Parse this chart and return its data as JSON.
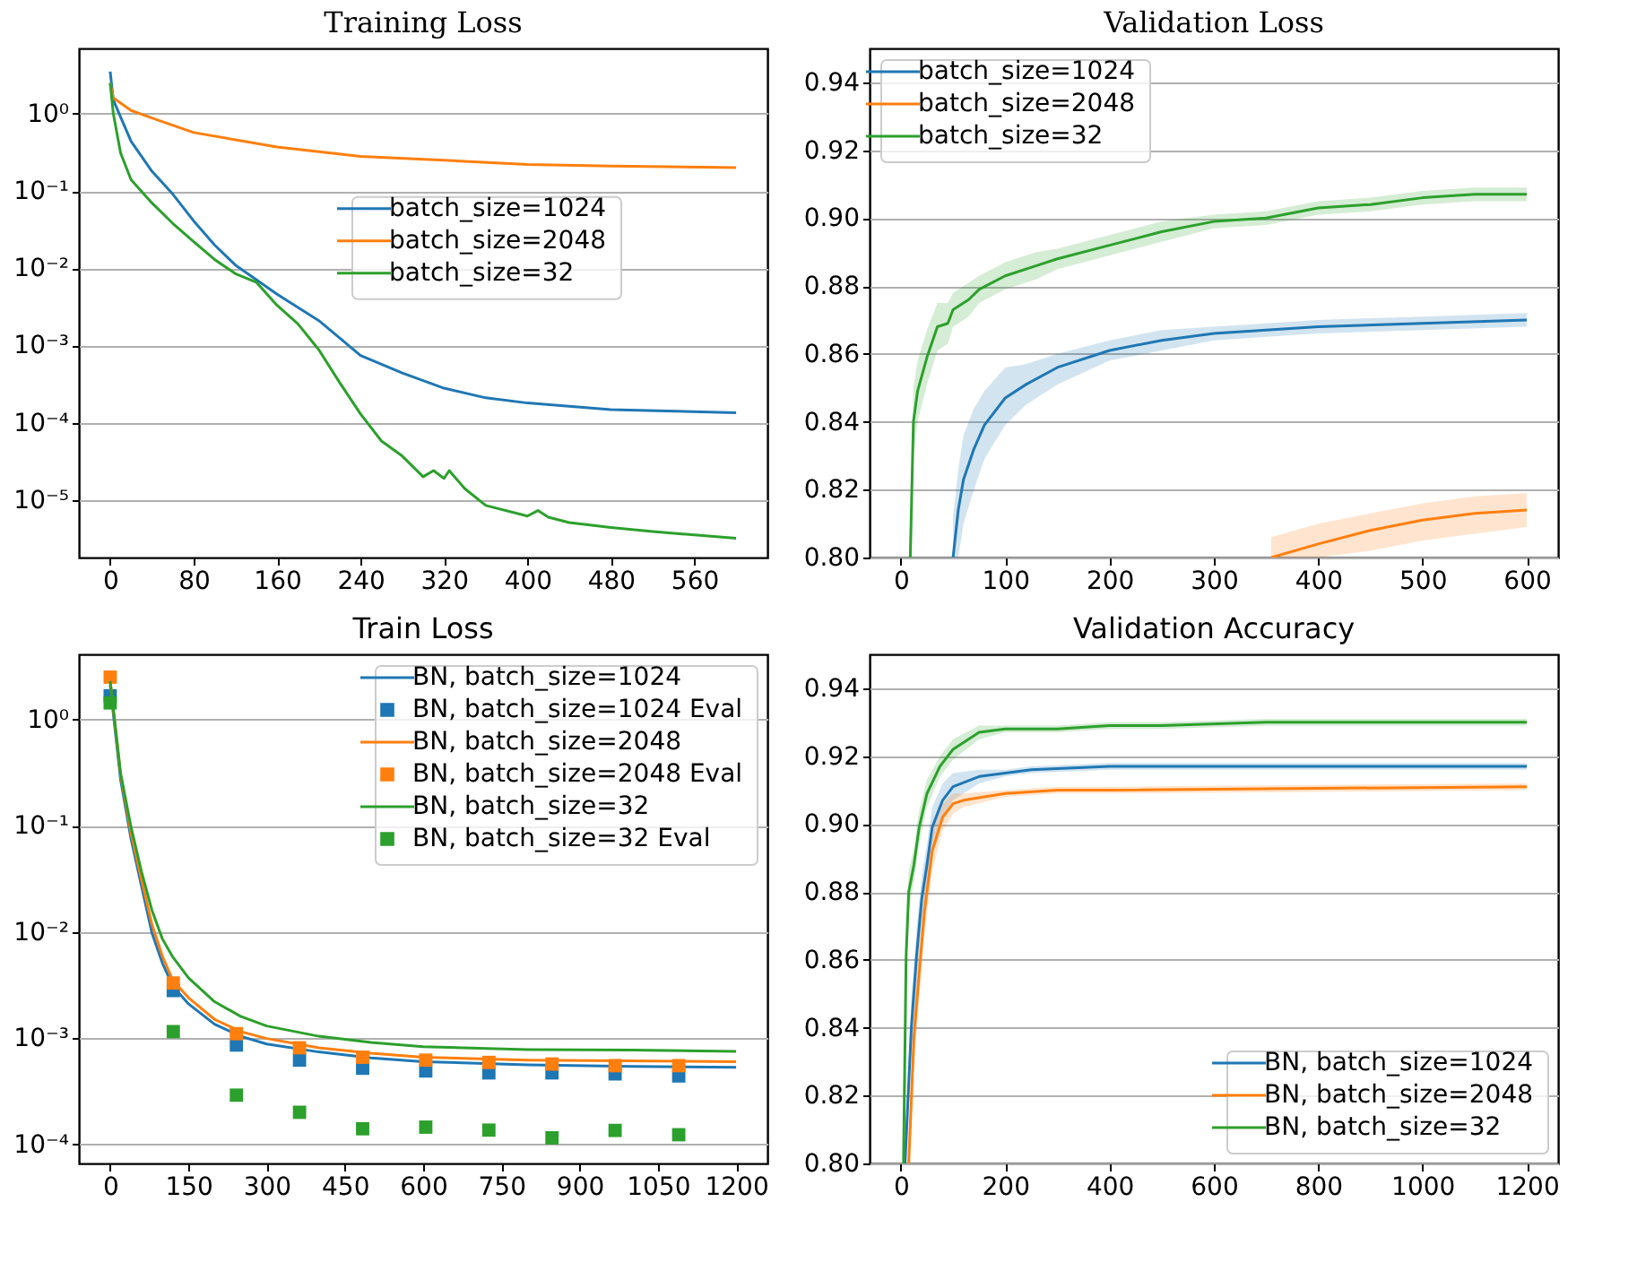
{
  "chart_data": [
    {
      "type": "line",
      "title": "Training Loss",
      "log": "y",
      "grid": "y",
      "legend": "right",
      "xlim": [
        -30,
        630
      ],
      "xticks": [
        0,
        80,
        160,
        240,
        320,
        400,
        480,
        560
      ],
      "ylim": [
        1.8e-06,
        7
      ],
      "yticks": [
        {
          "value": 1,
          "label": "10⁰"
        },
        {
          "value": 0.1,
          "label": "10⁻¹"
        },
        {
          "value": 0.01,
          "label": "10⁻²"
        },
        {
          "value": 0.001,
          "label": "10⁻³"
        },
        {
          "value": 0.0001,
          "label": "10⁻⁴"
        },
        {
          "value": 1e-05,
          "label": "10⁻⁵"
        }
      ],
      "series": [
        {
          "name": "batch_size=1024",
          "color": "#1f77b4",
          "x": [
            0,
            3,
            20,
            40,
            60,
            80,
            100,
            120,
            160,
            200,
            240,
            280,
            320,
            360,
            400,
            480,
            600
          ],
          "values": [
            3.5,
            1.5,
            0.44,
            0.18,
            0.091,
            0.041,
            0.02,
            0.011,
            0.0046,
            0.0021,
            0.00074,
            0.00044,
            0.00028,
            0.00021,
            0.00018,
            0.000148,
            0.000135
          ]
        },
        {
          "name": "batch_size=2048",
          "color": "#ff7f0e",
          "x": [
            0,
            3,
            20,
            40,
            80,
            160,
            240,
            320,
            400,
            480,
            600
          ],
          "values": [
            2.5,
            1.6,
            1.1,
            0.88,
            0.57,
            0.37,
            0.28,
            0.25,
            0.22,
            0.21,
            0.2
          ]
        },
        {
          "name": "batch_size=32",
          "color": "#2ca02c",
          "x": [
            0,
            3,
            10,
            20,
            40,
            60,
            80,
            100,
            120,
            140,
            160,
            180,
            200,
            220,
            240,
            260,
            280,
            300,
            310,
            320,
            325,
            340,
            360,
            400,
            410,
            420,
            440,
            480,
            520,
            600
          ],
          "values": [
            2.5,
            1.0,
            0.31,
            0.14,
            0.07,
            0.038,
            0.022,
            0.013,
            0.0085,
            0.0066,
            0.0033,
            0.0019,
            0.00088,
            0.00033,
            0.00013,
            5.8e-05,
            3.7e-05,
            2e-05,
            2.4e-05,
            1.9e-05,
            2.4e-05,
            1.4e-05,
            8.5e-06,
            6.2e-06,
            7.3e-06,
            6e-06,
            5.1e-06,
            4.4e-06,
            3.9e-06,
            3.2e-06
          ]
        }
      ]
    },
    {
      "type": "line",
      "title": "Validation Loss",
      "grid": "y",
      "legend": "top left",
      "xlim": [
        -30,
        630
      ],
      "xticks": [
        0,
        100,
        200,
        300,
        400,
        500,
        600
      ],
      "ylim": [
        0.8,
        0.95
      ],
      "yticks": [
        {
          "value": 0.8,
          "label": "0.80"
        },
        0.82,
        0.84,
        0.86,
        0.88,
        {
          "value": 0.9,
          "label": "0.90"
        },
        0.92,
        0.94
      ],
      "series": [
        {
          "name": "batch_size=1024",
          "color": "#1f77b4",
          "x": [
            50,
            55,
            60,
            70,
            80,
            100,
            120,
            150,
            200,
            250,
            300,
            350,
            400,
            500,
            600
          ],
          "values": [
            0.8,
            0.814,
            0.823,
            0.832,
            0.839,
            0.847,
            0.851,
            0.856,
            0.861,
            0.864,
            0.866,
            0.867,
            0.868,
            0.869,
            0.87
          ],
          "lower": [
            0.8,
            0.8,
            0.81,
            0.82,
            0.829,
            0.839,
            0.845,
            0.851,
            0.858,
            0.861,
            0.864,
            0.865,
            0.866,
            0.867,
            0.868
          ],
          "upper": [
            0.812,
            0.826,
            0.836,
            0.844,
            0.849,
            0.856,
            0.857,
            0.86,
            0.864,
            0.867,
            0.868,
            0.869,
            0.87,
            0.871,
            0.872
          ]
        },
        {
          "name": "batch_size=2048",
          "color": "#ff7f0e",
          "x": [
            355,
            400,
            450,
            500,
            550,
            600
          ],
          "values": [
            0.8,
            0.804,
            0.808,
            0.811,
            0.813,
            0.814
          ],
          "lower": [
            0.8,
            0.8,
            0.802,
            0.805,
            0.807,
            0.809
          ],
          "upper": [
            0.806,
            0.81,
            0.813,
            0.816,
            0.818,
            0.819
          ]
        },
        {
          "name": "batch_size=32",
          "color": "#2ca02c",
          "x": [
            9,
            12,
            16,
            25,
            35,
            45,
            50,
            65,
            75,
            100,
            130,
            150,
            200,
            250,
            300,
            350,
            400,
            450,
            500,
            550,
            600
          ],
          "values": [
            0.8,
            0.84,
            0.849,
            0.859,
            0.868,
            0.869,
            0.873,
            0.876,
            0.879,
            0.883,
            0.886,
            0.888,
            0.892,
            0.896,
            0.899,
            0.9,
            0.903,
            0.904,
            0.906,
            0.907,
            0.907
          ],
          "lower": [
            0.8,
            0.83,
            0.84,
            0.851,
            0.861,
            0.863,
            0.868,
            0.871,
            0.875,
            0.879,
            0.882,
            0.885,
            0.889,
            0.893,
            0.897,
            0.898,
            0.901,
            0.902,
            0.904,
            0.905,
            0.905
          ],
          "upper": [
            0.81,
            0.85,
            0.858,
            0.867,
            0.875,
            0.875,
            0.878,
            0.881,
            0.883,
            0.887,
            0.89,
            0.891,
            0.895,
            0.899,
            0.901,
            0.902,
            0.905,
            0.906,
            0.908,
            0.909,
            0.909
          ]
        }
      ]
    },
    {
      "type": "line",
      "title": "Train Loss",
      "log": "y",
      "grid": "y",
      "legend": "top right",
      "xlim": [
        -60,
        1260
      ],
      "xticks": [
        0,
        150,
        300,
        450,
        600,
        750,
        900,
        1050,
        1200
      ],
      "ylim": [
        6.6e-05,
        4.1
      ],
      "yticks": [
        {
          "value": 1,
          "label": "10⁰"
        },
        {
          "value": 0.1,
          "label": "10⁻¹"
        },
        {
          "value": 0.01,
          "label": "10⁻²"
        },
        {
          "value": 0.001,
          "label": "10⁻³"
        },
        {
          "value": 0.0001,
          "label": "10⁻⁴"
        }
      ],
      "series": [
        {
          "name": "BN, batch_size=1024",
          "color": "#1f77b4",
          "x": [
            0,
            20,
            40,
            60,
            80,
            100,
            120,
            150,
            200,
            250,
            300,
            400,
            500,
            600,
            800,
            1000,
            1200
          ],
          "values": [
            2.1,
            0.27,
            0.075,
            0.027,
            0.0098,
            0.0051,
            0.0031,
            0.0021,
            0.00135,
            0.00104,
            0.00088,
            0.00074,
            0.00065,
            0.0006,
            0.00056,
            0.00054,
            0.00053
          ]
        },
        {
          "name": "BN, batch_size=1024 Eval",
          "type": "scatter",
          "marker": "square",
          "color": "#1f77b4",
          "x": [
            0,
            121,
            242,
            363,
            484,
            605,
            726,
            847,
            968,
            1090
          ],
          "values": [
            1.67,
            0.0028,
            0.00086,
            0.00062,
            0.00052,
            0.00049,
            0.00047,
            0.00047,
            0.00046,
            0.00044
          ]
        },
        {
          "name": "BN, batch_size=2048",
          "color": "#ff7f0e",
          "x": [
            0,
            20,
            40,
            60,
            80,
            100,
            120,
            150,
            200,
            250,
            300,
            400,
            500,
            600,
            800,
            1200
          ],
          "values": [
            2.3,
            0.3,
            0.085,
            0.031,
            0.0118,
            0.0059,
            0.0035,
            0.0024,
            0.0015,
            0.00115,
            0.00099,
            0.00081,
            0.00072,
            0.00066,
            0.00062,
            0.0006
          ]
        },
        {
          "name": "BN, batch_size=2048 Eval",
          "type": "scatter",
          "marker": "square",
          "color": "#ff7f0e",
          "x": [
            0,
            121,
            242,
            363,
            484,
            605,
            726,
            847,
            968,
            1090
          ],
          "values": [
            2.5,
            0.0033,
            0.0011,
            0.00081,
            0.00066,
            0.00062,
            0.00059,
            0.00057,
            0.00055,
            0.00055
          ]
        },
        {
          "name": "BN, batch_size=32",
          "color": "#2ca02c",
          "x": [
            0,
            20,
            40,
            60,
            80,
            100,
            120,
            150,
            200,
            250,
            300,
            400,
            500,
            600,
            800,
            1000,
            1200
          ],
          "values": [
            2.3,
            0.31,
            0.097,
            0.037,
            0.016,
            0.0086,
            0.0058,
            0.0037,
            0.0022,
            0.0016,
            0.0013,
            0.00104,
            0.00091,
            0.00083,
            0.00078,
            0.00077,
            0.00075
          ]
        },
        {
          "name": "BN, batch_size=32 Eval",
          "type": "scatter",
          "marker": "square",
          "color": "#2ca02c",
          "x": [
            0,
            121,
            242,
            363,
            484,
            605,
            726,
            847,
            968,
            1090
          ],
          "values": [
            1.43,
            0.00115,
            0.00029,
            0.0002,
            0.00014,
            0.000145,
            0.000136,
            0.000115,
            0.000135,
            0.000123
          ]
        }
      ]
    },
    {
      "type": "line",
      "title": "Validation Accuracy",
      "grid": "y",
      "legend": "bottom right",
      "xlim": [
        -60,
        1260
      ],
      "xticks": [
        0,
        200,
        400,
        600,
        800,
        1000,
        1200
      ],
      "ylim": [
        0.8,
        0.95
      ],
      "yticks": [
        {
          "value": 0.8,
          "label": "0.80"
        },
        0.82,
        0.84,
        0.86,
        0.88,
        {
          "value": 0.9,
          "label": "0.90"
        },
        0.92,
        0.94
      ],
      "series": [
        {
          "name": "BN, batch_size=1024",
          "color": "#1f77b4",
          "x": [
            8,
            20,
            30,
            40,
            50,
            60,
            80,
            100,
            150,
            200,
            250,
            400,
            600,
            1200
          ],
          "values": [
            0.8,
            0.84,
            0.861,
            0.878,
            0.888,
            0.899,
            0.907,
            0.911,
            0.914,
            0.915,
            0.916,
            0.917,
            0.917,
            0.917
          ],
          "lower": [
            0.8,
            0.832,
            0.853,
            0.871,
            0.882,
            0.893,
            0.902,
            0.907,
            0.912,
            0.914,
            0.915,
            0.916,
            0.916,
            0.916
          ],
          "upper": [
            0.808,
            0.848,
            0.869,
            0.885,
            0.894,
            0.905,
            0.912,
            0.915,
            0.916,
            0.916,
            0.917,
            0.918,
            0.918,
            0.918
          ]
        },
        {
          "name": "BN, batch_size=2048",
          "color": "#ff7f0e",
          "x": [
            15,
            25,
            35,
            45,
            60,
            80,
            100,
            120,
            200,
            300,
            400,
            1200
          ],
          "values": [
            0.8,
            0.837,
            0.856,
            0.874,
            0.892,
            0.902,
            0.906,
            0.907,
            0.909,
            0.91,
            0.91,
            0.911
          ],
          "lower": [
            0.8,
            0.829,
            0.848,
            0.867,
            0.886,
            0.898,
            0.903,
            0.905,
            0.908,
            0.909,
            0.909,
            0.91
          ],
          "upper": [
            0.808,
            0.845,
            0.864,
            0.881,
            0.898,
            0.906,
            0.909,
            0.909,
            0.91,
            0.911,
            0.911,
            0.912
          ]
        },
        {
          "name": "BN, batch_size=32",
          "color": "#2ca02c",
          "x": [
            5,
            10,
            15,
            25,
            35,
            50,
            75,
            100,
            150,
            200,
            300,
            400,
            500,
            700,
            1200
          ],
          "values": [
            0.8,
            0.861,
            0.88,
            0.888,
            0.899,
            0.909,
            0.917,
            0.922,
            0.927,
            0.928,
            0.928,
            0.929,
            0.929,
            0.93,
            0.93
          ],
          "lower": [
            0.8,
            0.855,
            0.874,
            0.883,
            0.894,
            0.905,
            0.914,
            0.919,
            0.925,
            0.927,
            0.927,
            0.928,
            0.928,
            0.929,
            0.929
          ],
          "upper": [
            0.81,
            0.867,
            0.886,
            0.893,
            0.904,
            0.913,
            0.92,
            0.925,
            0.929,
            0.929,
            0.929,
            0.93,
            0.93,
            0.931,
            0.931
          ]
        }
      ]
    }
  ]
}
